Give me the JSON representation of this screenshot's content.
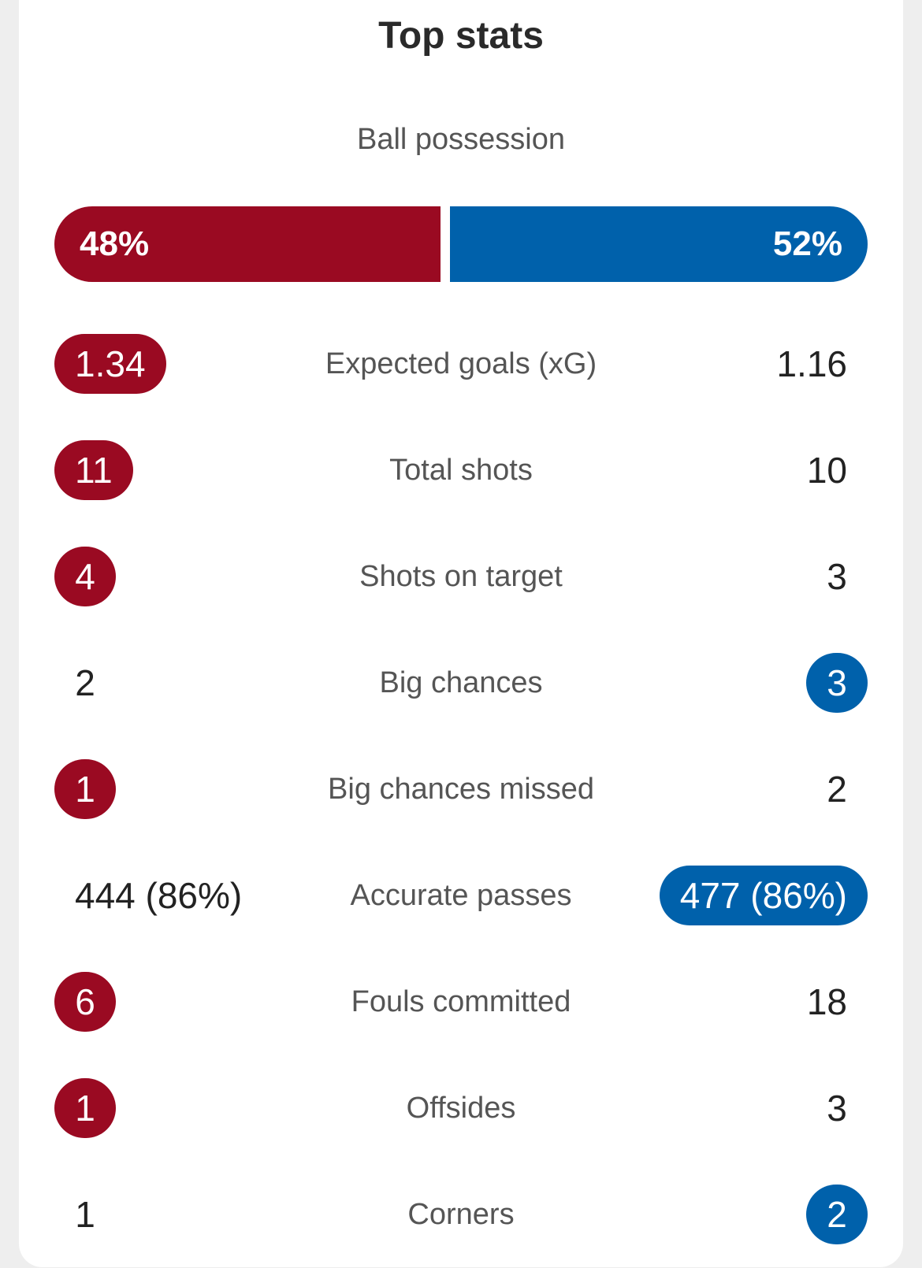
{
  "title": "Top stats",
  "colors": {
    "home": "#9a0a22",
    "away": "#0061ab",
    "label": "#555555",
    "value": "#222222"
  },
  "possession": {
    "label": "Ball possession",
    "home": 48,
    "away": 52,
    "home_text": "48%",
    "away_text": "52%"
  },
  "stats": [
    {
      "label": "Expected goals (xG)",
      "home": "1.34",
      "away": "1.16",
      "leader": "home"
    },
    {
      "label": "Total shots",
      "home": "11",
      "away": "10",
      "leader": "home"
    },
    {
      "label": "Shots on target",
      "home": "4",
      "away": "3",
      "leader": "home"
    },
    {
      "label": "Big chances",
      "home": "2",
      "away": "3",
      "leader": "away"
    },
    {
      "label": "Big chances missed",
      "home": "1",
      "away": "2",
      "leader": "home"
    },
    {
      "label": "Accurate passes",
      "home": "444 (86%)",
      "away": "477 (86%)",
      "leader": "away"
    },
    {
      "label": "Fouls committed",
      "home": "6",
      "away": "18",
      "leader": "home"
    },
    {
      "label": "Offsides",
      "home": "1",
      "away": "3",
      "leader": "home"
    },
    {
      "label": "Corners",
      "home": "1",
      "away": "2",
      "leader": "away"
    }
  ]
}
